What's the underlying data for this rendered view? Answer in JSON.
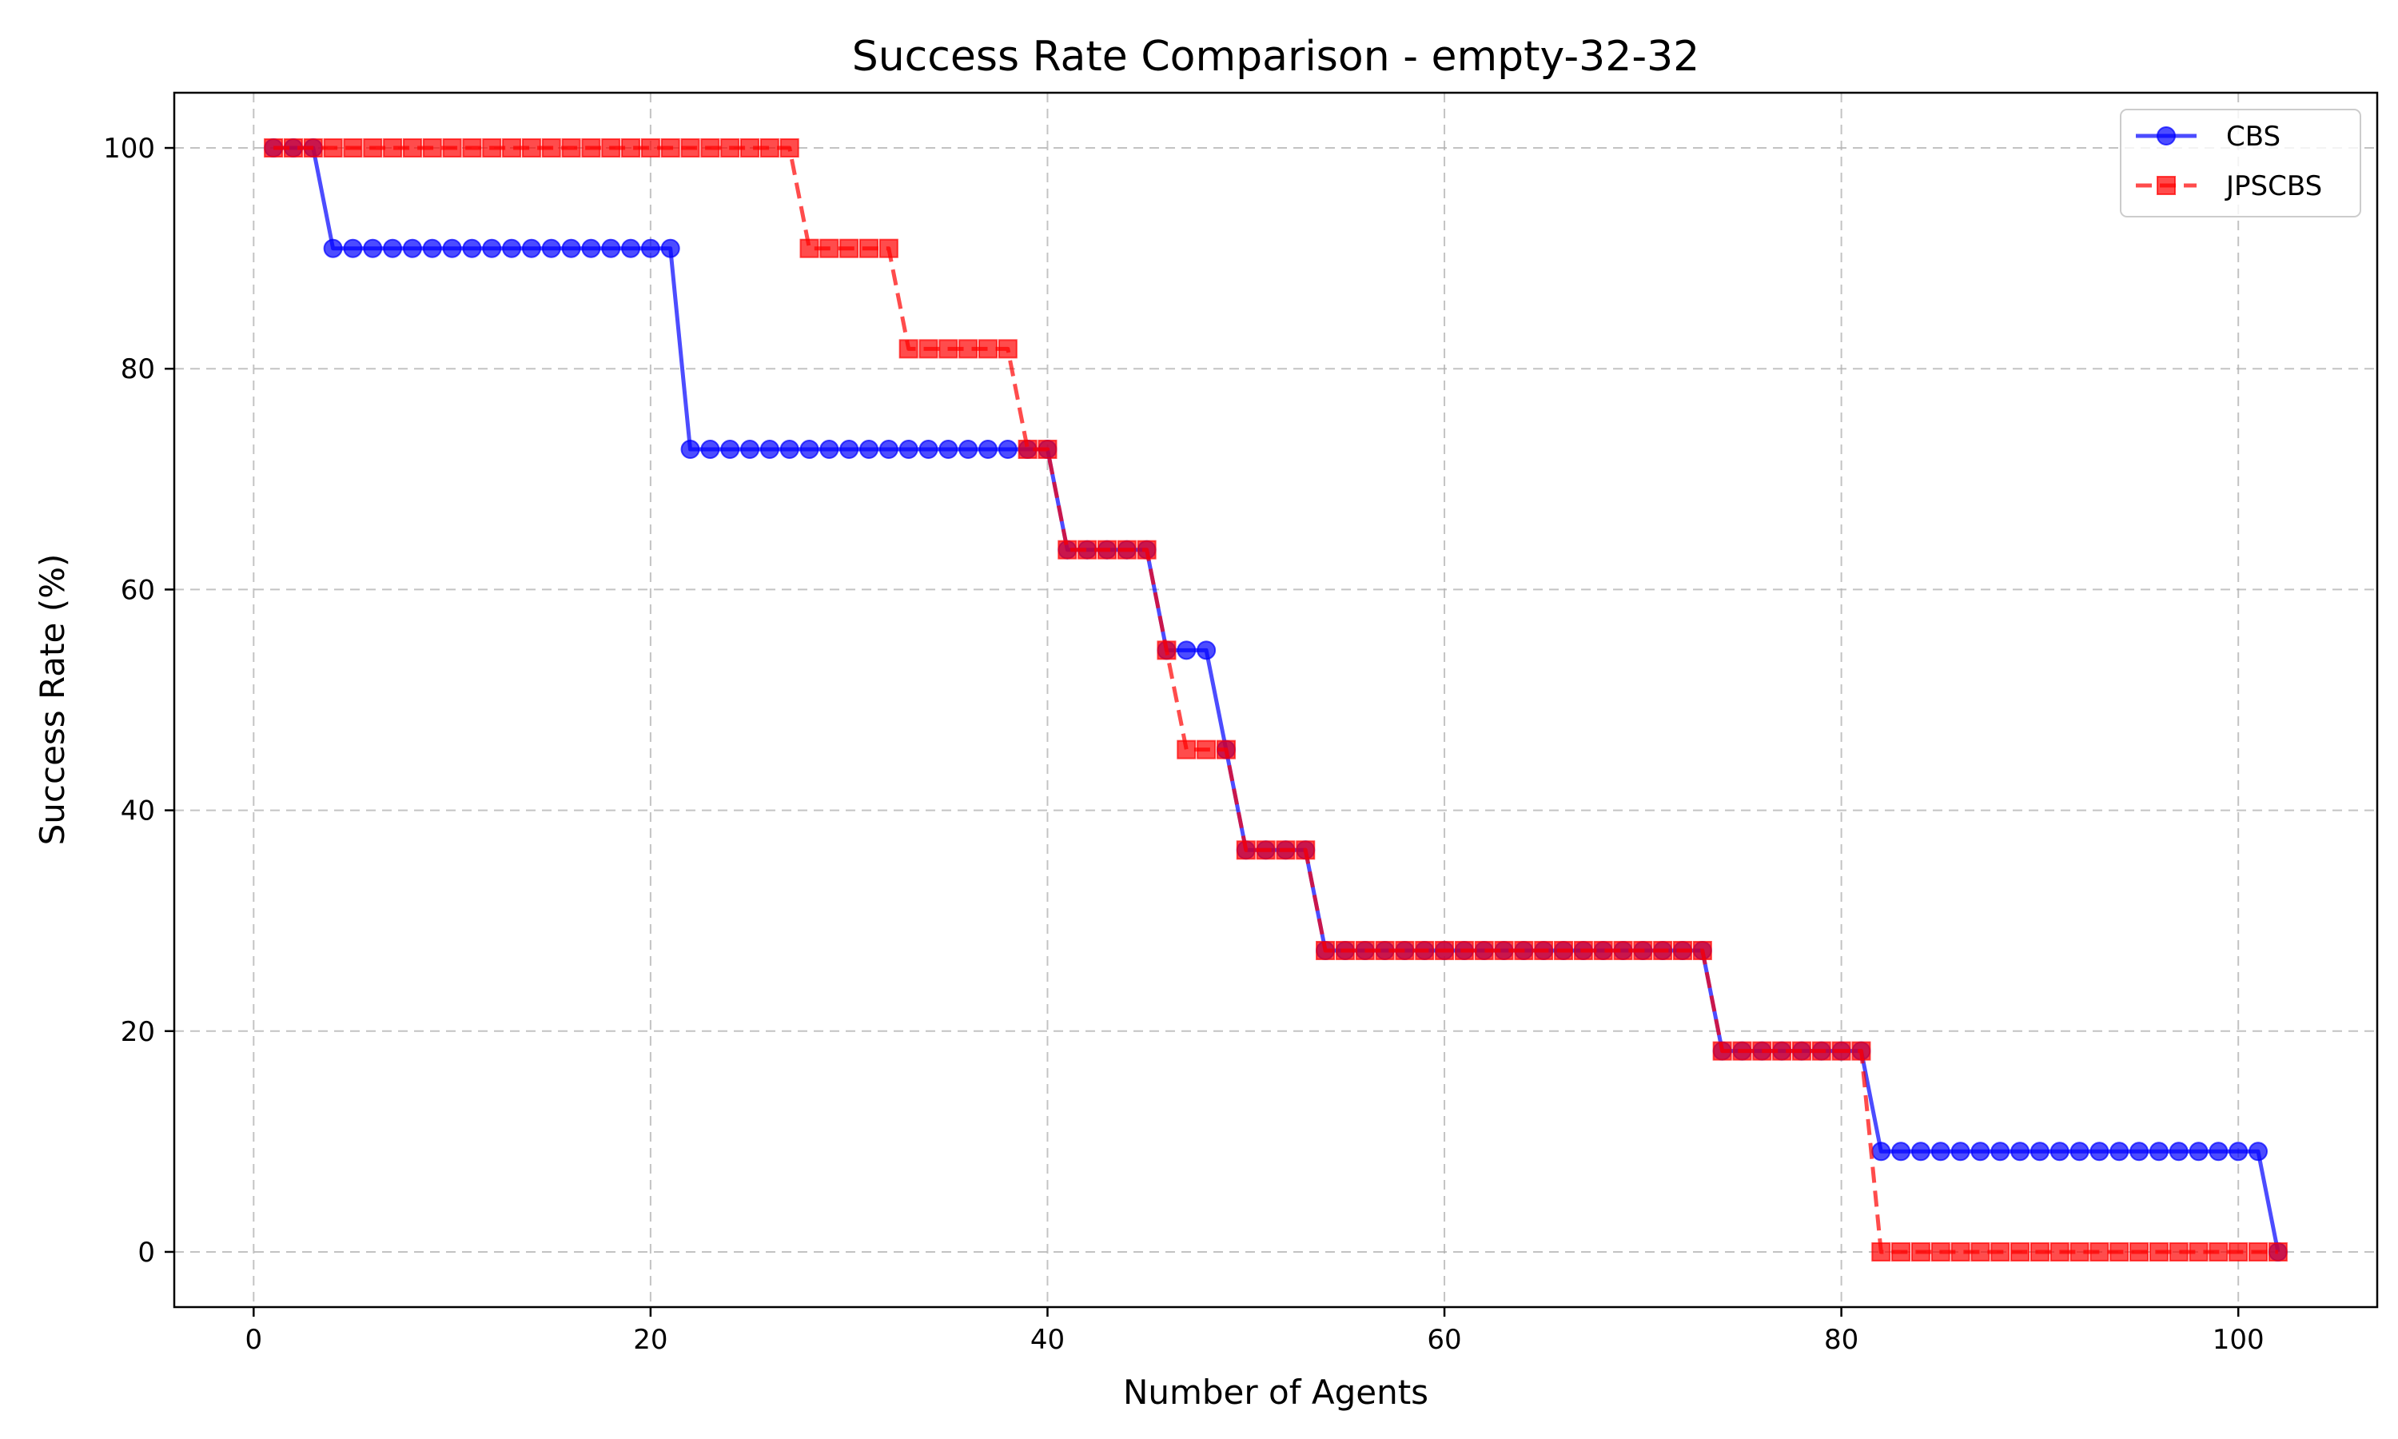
{
  "chart_data": {
    "type": "line",
    "title": "Success Rate Comparison - empty-32-32",
    "xlabel": "Number of Agents",
    "ylabel": "Success Rate (%)",
    "xlim": [
      -4,
      107
    ],
    "ylim": [
      -5,
      105
    ],
    "xticks": [
      0,
      20,
      40,
      60,
      80,
      100
    ],
    "yticks": [
      0,
      20,
      40,
      60,
      80,
      100
    ],
    "grid": true,
    "legend_position": "top-right",
    "series": [
      {
        "name": "CBS",
        "color": "#0000ff",
        "marker": "circle",
        "linestyle": "solid",
        "x": [
          1,
          2,
          3,
          4,
          5,
          6,
          7,
          8,
          9,
          10,
          11,
          12,
          13,
          14,
          15,
          16,
          17,
          18,
          19,
          20,
          21,
          22,
          23,
          24,
          25,
          26,
          27,
          28,
          29,
          30,
          31,
          32,
          33,
          34,
          35,
          36,
          37,
          38,
          39,
          40,
          41,
          42,
          43,
          44,
          45,
          46,
          47,
          48,
          49,
          50,
          51,
          52,
          53,
          54,
          55,
          56,
          57,
          58,
          59,
          60,
          61,
          62,
          63,
          64,
          65,
          66,
          67,
          68,
          69,
          70,
          71,
          72,
          73,
          74,
          75,
          76,
          77,
          78,
          79,
          80,
          81,
          82,
          83,
          84,
          85,
          86,
          87,
          88,
          89,
          90,
          91,
          92,
          93,
          94,
          95,
          96,
          97,
          98,
          99,
          100,
          101,
          102
        ],
        "y": [
          100,
          100,
          100,
          90.9,
          90.9,
          90.9,
          90.9,
          90.9,
          90.9,
          90.9,
          90.9,
          90.9,
          90.9,
          90.9,
          90.9,
          90.9,
          90.9,
          90.9,
          90.9,
          90.9,
          90.9,
          72.7,
          72.7,
          72.7,
          72.7,
          72.7,
          72.7,
          72.7,
          72.7,
          72.7,
          72.7,
          72.7,
          72.7,
          72.7,
          72.7,
          72.7,
          72.7,
          72.7,
          72.7,
          72.7,
          63.6,
          63.6,
          63.6,
          63.6,
          63.6,
          54.5,
          54.5,
          54.5,
          45.5,
          36.4,
          36.4,
          36.4,
          36.4,
          27.3,
          27.3,
          27.3,
          27.3,
          27.3,
          27.3,
          27.3,
          27.3,
          27.3,
          27.3,
          27.3,
          27.3,
          27.3,
          27.3,
          27.3,
          27.3,
          27.3,
          27.3,
          27.3,
          27.3,
          18.2,
          18.2,
          18.2,
          18.2,
          18.2,
          18.2,
          18.2,
          18.2,
          9.1,
          9.1,
          9.1,
          9.1,
          9.1,
          9.1,
          9.1,
          9.1,
          9.1,
          9.1,
          9.1,
          9.1,
          9.1,
          9.1,
          9.1,
          9.1,
          9.1,
          9.1,
          9.1,
          9.1,
          0
        ]
      },
      {
        "name": "JPSCBS",
        "color": "#ff0000",
        "marker": "square",
        "linestyle": "dashed",
        "x": [
          1,
          2,
          3,
          4,
          5,
          6,
          7,
          8,
          9,
          10,
          11,
          12,
          13,
          14,
          15,
          16,
          17,
          18,
          19,
          20,
          21,
          22,
          23,
          24,
          25,
          26,
          27,
          28,
          29,
          30,
          31,
          32,
          33,
          34,
          35,
          36,
          37,
          38,
          39,
          40,
          41,
          42,
          43,
          44,
          45,
          46,
          47,
          48,
          49,
          50,
          51,
          52,
          53,
          54,
          55,
          56,
          57,
          58,
          59,
          60,
          61,
          62,
          63,
          64,
          65,
          66,
          67,
          68,
          69,
          70,
          71,
          72,
          73,
          74,
          75,
          76,
          77,
          78,
          79,
          80,
          81,
          82,
          83,
          84,
          85,
          86,
          87,
          88,
          89,
          90,
          91,
          92,
          93,
          94,
          95,
          96,
          97,
          98,
          99,
          100,
          101,
          102
        ],
        "y": [
          100,
          100,
          100,
          100,
          100,
          100,
          100,
          100,
          100,
          100,
          100,
          100,
          100,
          100,
          100,
          100,
          100,
          100,
          100,
          100,
          100,
          100,
          100,
          100,
          100,
          100,
          100,
          90.9,
          90.9,
          90.9,
          90.9,
          90.9,
          81.8,
          81.8,
          81.8,
          81.8,
          81.8,
          81.8,
          72.7,
          72.7,
          63.6,
          63.6,
          63.6,
          63.6,
          63.6,
          54.5,
          45.5,
          45.5,
          45.5,
          36.4,
          36.4,
          36.4,
          36.4,
          27.3,
          27.3,
          27.3,
          27.3,
          27.3,
          27.3,
          27.3,
          27.3,
          27.3,
          27.3,
          27.3,
          27.3,
          27.3,
          27.3,
          27.3,
          27.3,
          27.3,
          27.3,
          27.3,
          27.3,
          18.2,
          18.2,
          18.2,
          18.2,
          18.2,
          18.2,
          18.2,
          18.2,
          0,
          0,
          0,
          0,
          0,
          0,
          0,
          0,
          0,
          0,
          0,
          0,
          0,
          0,
          0,
          0,
          0,
          0,
          0,
          0,
          0
        ]
      }
    ]
  }
}
